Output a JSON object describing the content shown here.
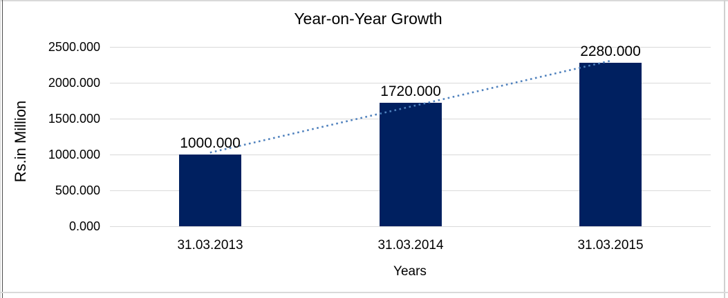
{
  "chart_data": {
    "type": "bar",
    "title": "Year-on-Year Growth",
    "xlabel": "Years",
    "ylabel": "Rs.in Million",
    "categories": [
      "31.03.2013",
      "31.03.2014",
      "31.03.2015"
    ],
    "values": [
      1000,
      1720,
      2280
    ],
    "value_labels": [
      "1000.000",
      "1720.000",
      "2280.000"
    ],
    "ylim": [
      0,
      2500
    ],
    "ytick_values": [
      0,
      500,
      1000,
      1500,
      2000,
      2500
    ],
    "ytick_labels": [
      "0.000",
      "500.000",
      "1000.000",
      "1500.000",
      "2000.000",
      "2500.000"
    ],
    "grid": true,
    "legend": "none",
    "bar_color": "#002060",
    "gridline_color": "#d9d9d9",
    "text_color": "#000000",
    "trendline": {
      "type": "linear",
      "style": "dotted",
      "color": "#4f81bd"
    }
  }
}
